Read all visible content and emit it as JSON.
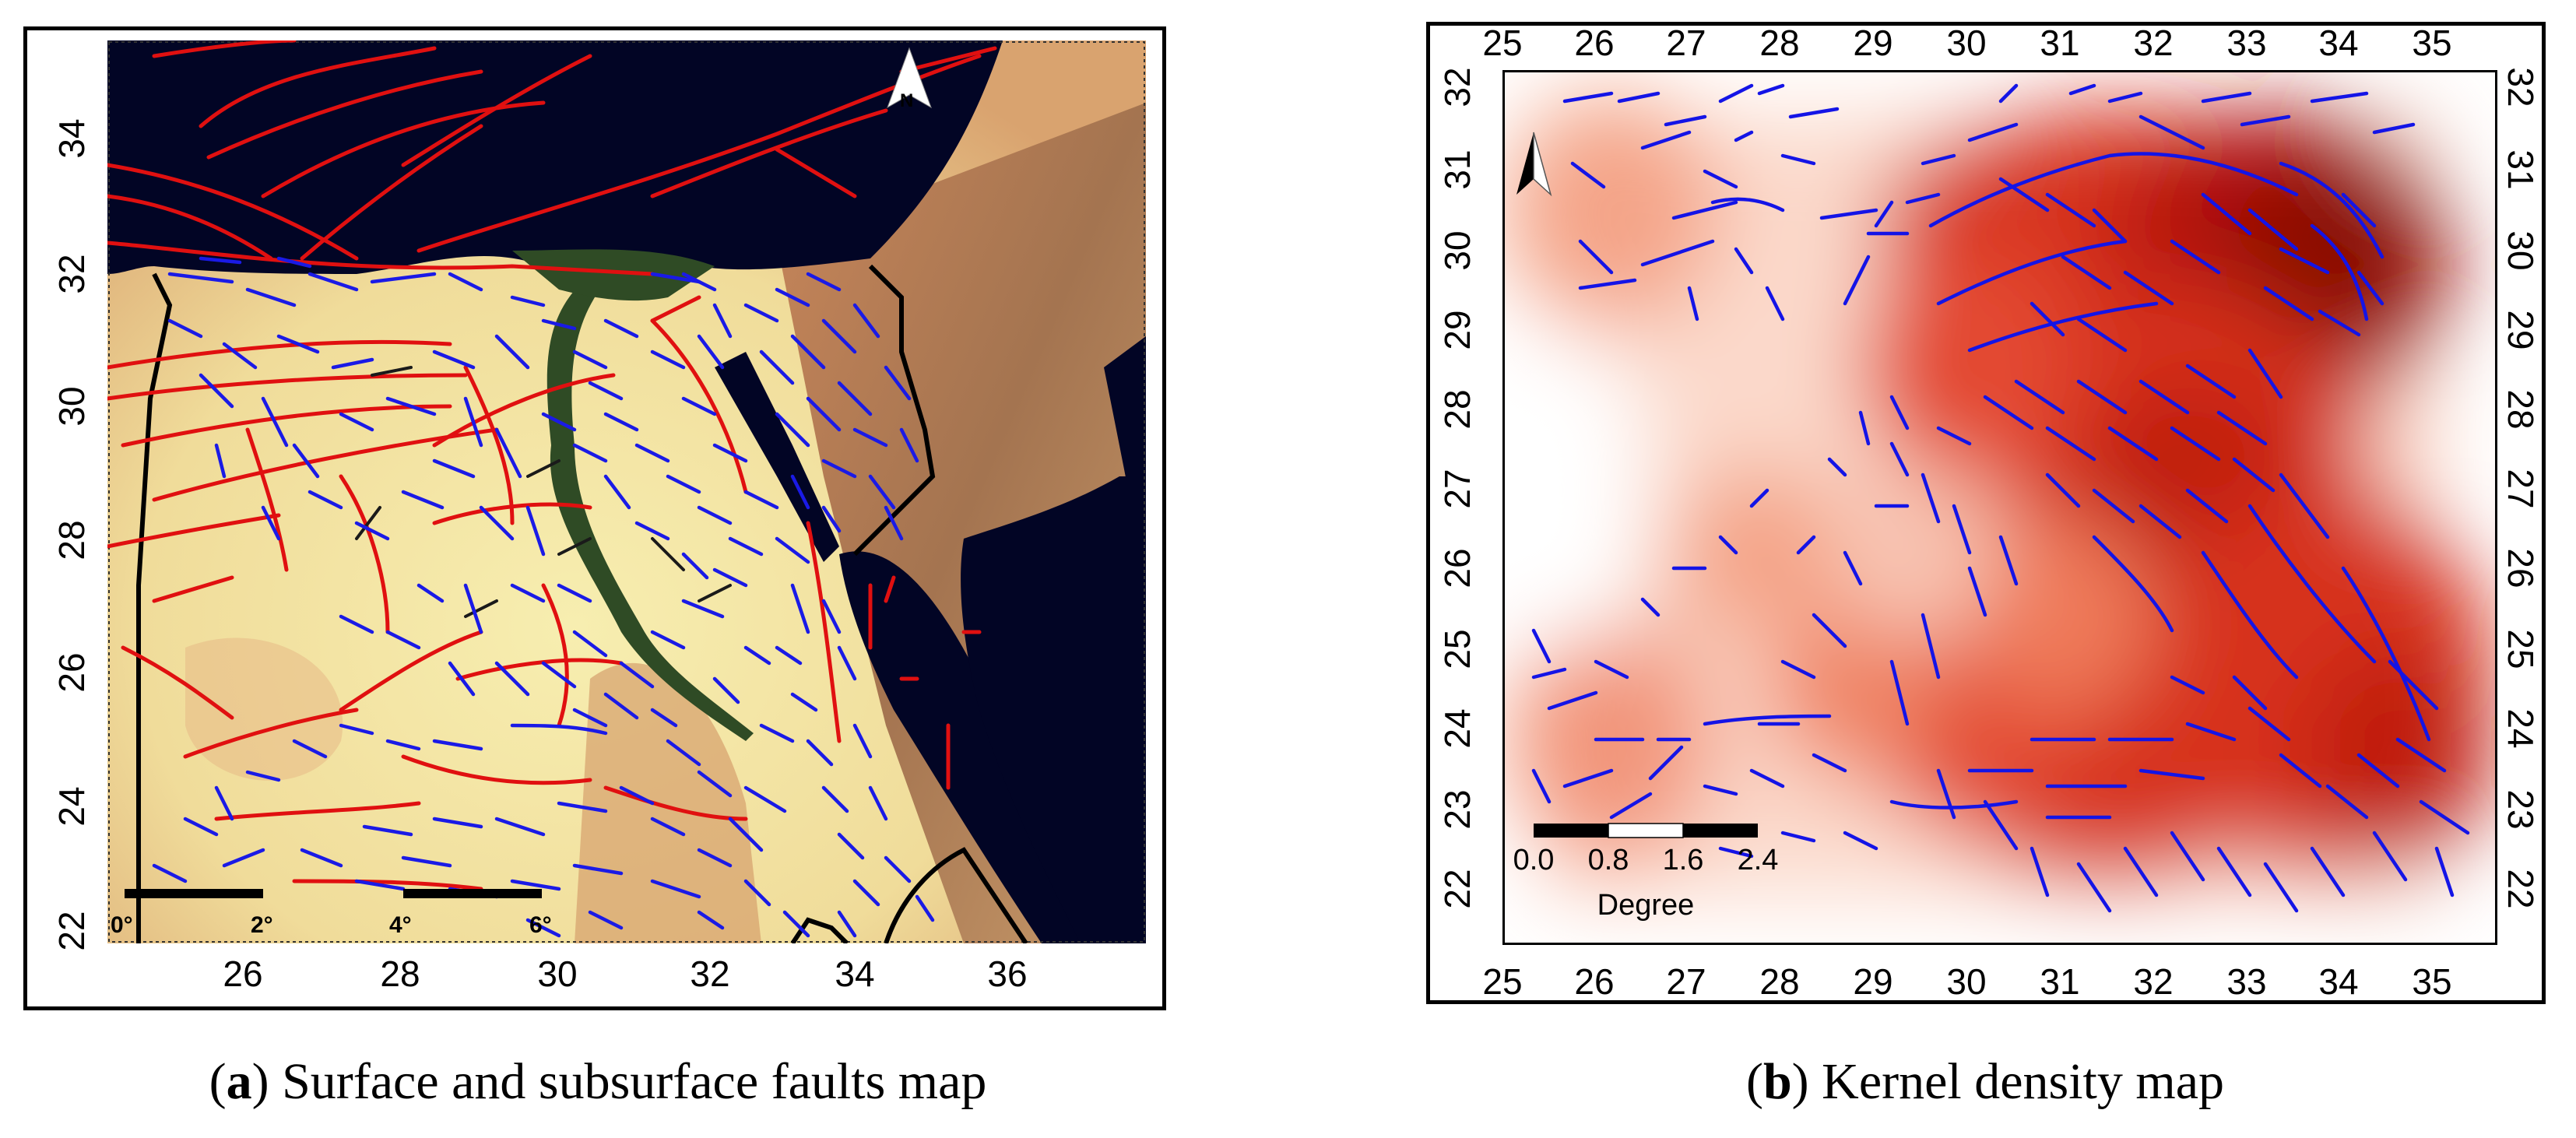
{
  "panel_a": {
    "label": "a",
    "caption": "Surface and subsurface faults map",
    "x_ticks": [
      "26",
      "28",
      "30",
      "32",
      "34",
      "36"
    ],
    "y_ticks": [
      "34",
      "32",
      "30",
      "28",
      "26",
      "24",
      "22"
    ],
    "north_arrow": "N",
    "scale_labels": [
      "0°",
      "2°",
      "4°",
      "6°"
    ],
    "legend_colors": {
      "surface_faults": "#e01010",
      "subsurface_faults": "#1010e0",
      "borders": "#000000",
      "sea": "#020525",
      "desert": "#f3e7a2",
      "nile_delta": "#2f4b25"
    }
  },
  "panel_b": {
    "label": "b",
    "caption": "Kernel density map",
    "x_ticks": [
      "25",
      "26",
      "27",
      "28",
      "29",
      "30",
      "31",
      "32",
      "33",
      "34",
      "35"
    ],
    "y_ticks": [
      "32",
      "31",
      "30",
      "29",
      "28",
      "27",
      "26",
      "25",
      "24",
      "23",
      "22"
    ],
    "scale_labels": [
      "0.0",
      "0.8",
      "1.6",
      "2.4"
    ],
    "scale_title": "Degree",
    "colors": {
      "density_high": "#8a0b05",
      "density_mid": "#e34a33",
      "density_low": "#ffffff",
      "faults": "#1414e6"
    }
  }
}
